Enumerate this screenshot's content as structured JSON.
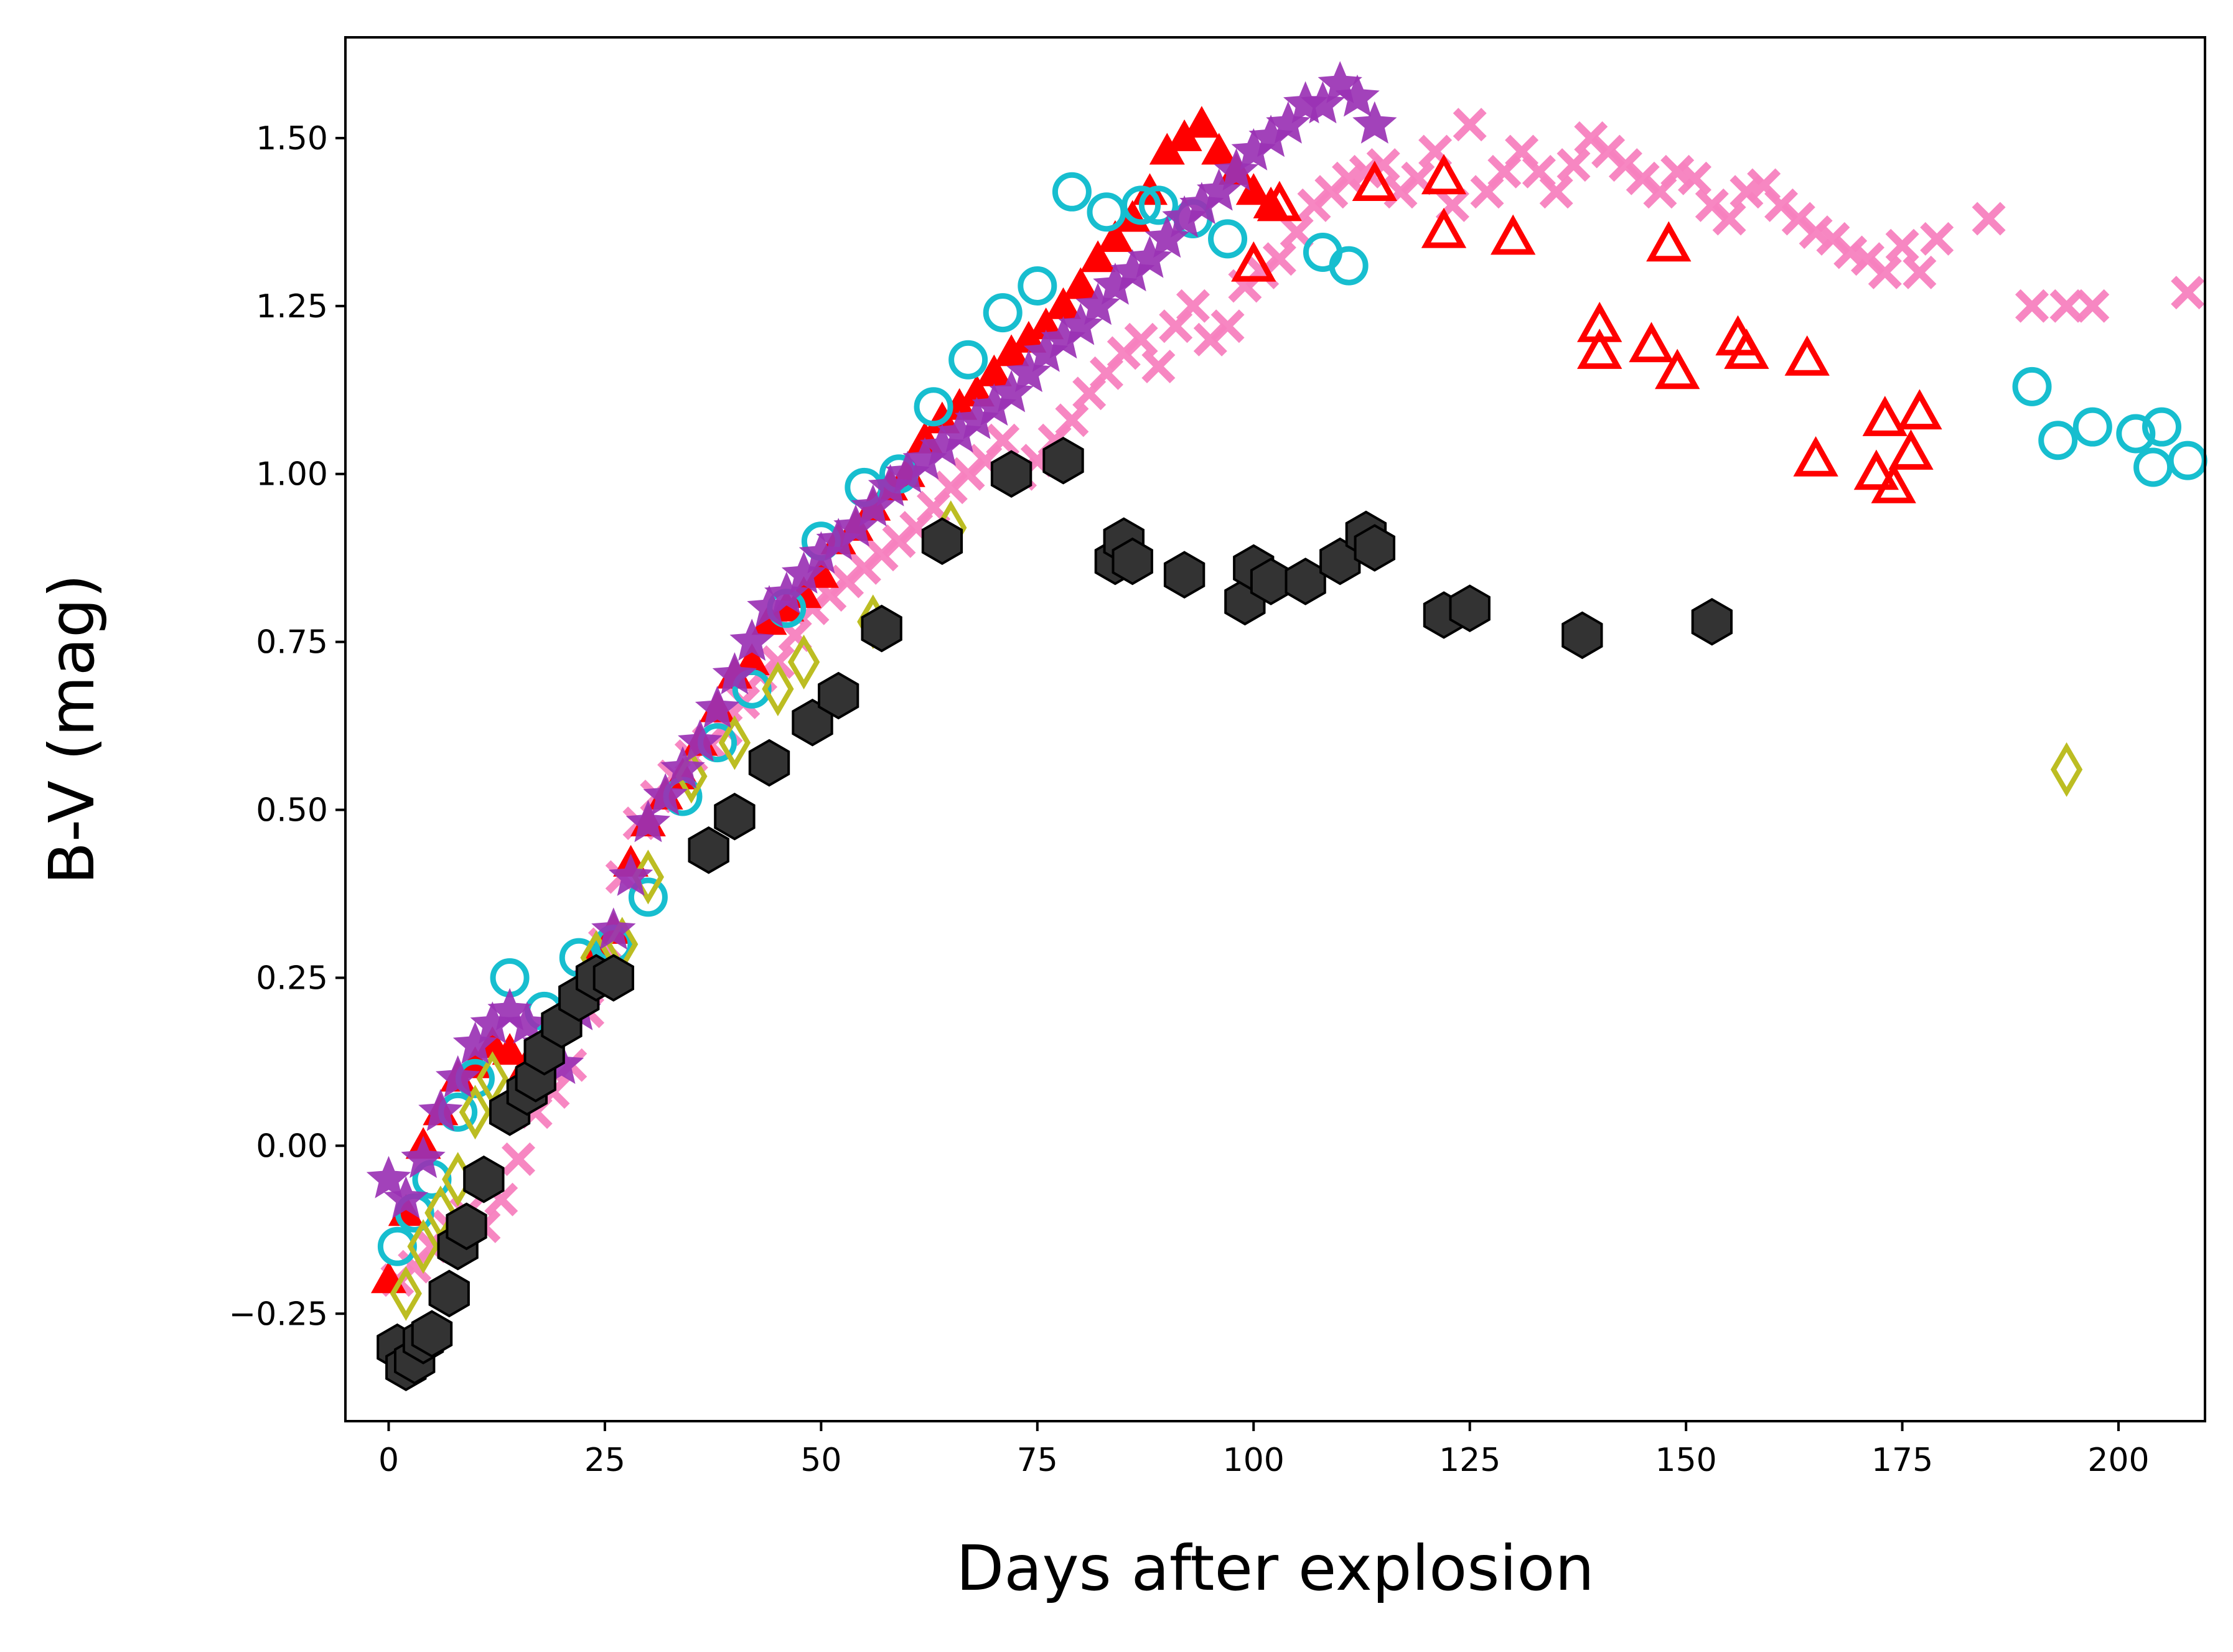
{
  "chart_data": {
    "type": "scatter",
    "title": "",
    "xlabel": "Days after explosion",
    "ylabel": "B-V (mag)",
    "xlim": [
      -5,
      210
    ],
    "ylim": [
      -0.41,
      1.65
    ],
    "xticks": [
      0,
      25,
      50,
      75,
      100,
      125,
      150,
      175,
      200
    ],
    "yticks": [
      -0.25,
      0.0,
      0.25,
      0.5,
      0.75,
      1.0,
      1.25,
      1.5
    ],
    "xtick_labels": [
      "0",
      "25",
      "50",
      "75",
      "100",
      "125",
      "150",
      "175",
      "200"
    ],
    "ytick_labels": [
      "−0.25",
      "0.00",
      "0.25",
      "0.50",
      "0.75",
      "1.00",
      "1.25",
      "1.50"
    ],
    "grid": false,
    "legend": "none",
    "series": [
      {
        "marker": "cross",
        "color": "#f781bf",
        "x": [
          1,
          3,
          5,
          7,
          9,
          11,
          13,
          15,
          17,
          19,
          21,
          23,
          25,
          27,
          29,
          31,
          33,
          35,
          37,
          39,
          41,
          43,
          45,
          47,
          49,
          51,
          53,
          55,
          57,
          59,
          61,
          63,
          65,
          67,
          69,
          71,
          73,
          75,
          77,
          79,
          81,
          83,
          85,
          87,
          89,
          91,
          93,
          95,
          97,
          99,
          101,
          103,
          105,
          107,
          109,
          111,
          113,
          115,
          117,
          119,
          121,
          123,
          125,
          127,
          129,
          131,
          133,
          135,
          137,
          139,
          141,
          143,
          145,
          147,
          149,
          151,
          153,
          155,
          157,
          159,
          161,
          163,
          165,
          167,
          169,
          171,
          173,
          175,
          177,
          179,
          185,
          190,
          194,
          197,
          208
        ],
        "y": [
          -0.2,
          -0.18,
          -0.15,
          -0.12,
          -0.1,
          -0.12,
          -0.08,
          -0.02,
          0.05,
          0.08,
          0.12,
          0.2,
          0.3,
          0.4,
          0.48,
          0.52,
          0.55,
          0.58,
          0.6,
          0.62,
          0.66,
          0.7,
          0.72,
          0.76,
          0.8,
          0.82,
          0.84,
          0.86,
          0.88,
          0.9,
          0.92,
          0.95,
          0.98,
          1.0,
          1.02,
          1.05,
          1.0,
          1.02,
          1.05,
          1.08,
          1.12,
          1.15,
          1.18,
          1.2,
          1.16,
          1.22,
          1.25,
          1.2,
          1.22,
          1.28,
          1.3,
          1.32,
          1.36,
          1.4,
          1.42,
          1.44,
          1.45,
          1.46,
          1.42,
          1.44,
          1.48,
          1.4,
          1.52,
          1.42,
          1.45,
          1.48,
          1.45,
          1.42,
          1.46,
          1.5,
          1.48,
          1.46,
          1.44,
          1.42,
          1.45,
          1.44,
          1.4,
          1.38,
          1.42,
          1.43,
          1.4,
          1.38,
          1.36,
          1.35,
          1.33,
          1.32,
          1.3,
          1.34,
          1.3,
          1.35,
          1.38,
          1.25,
          1.25,
          1.25,
          1.27
        ]
      },
      {
        "marker": "triangle-filled",
        "color": "#ff0000",
        "x": [
          0,
          2,
          4,
          6,
          8,
          10,
          12,
          14,
          16,
          18,
          20,
          22,
          24,
          26,
          28,
          30,
          32,
          34,
          36,
          38,
          40,
          42,
          44,
          46,
          48,
          50,
          52,
          54,
          56,
          58,
          60,
          62,
          64,
          66,
          68,
          70,
          72,
          74,
          76,
          78,
          80,
          82,
          84,
          86,
          88,
          90,
          92,
          94,
          96,
          98,
          100,
          102
        ],
        "y": [
          -0.2,
          -0.1,
          0.0,
          0.05,
          0.1,
          0.12,
          0.15,
          0.14,
          0.12,
          0.15,
          0.18,
          0.22,
          0.28,
          0.32,
          0.42,
          0.48,
          0.52,
          0.55,
          0.6,
          0.65,
          0.7,
          0.72,
          0.78,
          0.8,
          0.82,
          0.85,
          0.9,
          0.92,
          0.95,
          0.98,
          1.0,
          1.05,
          1.08,
          1.1,
          1.12,
          1.15,
          1.18,
          1.2,
          1.22,
          1.25,
          1.28,
          1.32,
          1.35,
          1.38,
          1.42,
          1.48,
          1.5,
          1.52,
          1.48,
          1.45,
          1.42,
          1.4
        ]
      },
      {
        "marker": "triangle-open",
        "color": "#ff0000",
        "x": [
          100,
          103,
          114,
          122,
          122,
          130,
          148,
          140,
          140,
          146,
          149,
          156,
          157,
          164,
          165,
          172,
          173,
          174,
          176,
          177
        ],
        "y": [
          1.31,
          1.4,
          1.43,
          1.44,
          1.36,
          1.35,
          1.34,
          1.22,
          1.18,
          1.19,
          1.15,
          1.2,
          1.18,
          1.17,
          1.02,
          1.0,
          1.08,
          0.98,
          1.03,
          1.09
        ]
      },
      {
        "marker": "circle-open",
        "color": "#17becf",
        "x": [
          1,
          3,
          5,
          8,
          10,
          14,
          18,
          22,
          26,
          30,
          34,
          38,
          42,
          46,
          50,
          55,
          59,
          63,
          67,
          71,
          75,
          79,
          83,
          87,
          89,
          93,
          97,
          108,
          111,
          190,
          193,
          197,
          202,
          204,
          205,
          208
        ],
        "y": [
          -0.15,
          -0.1,
          -0.05,
          0.05,
          0.1,
          0.25,
          0.2,
          0.28,
          0.3,
          0.37,
          0.52,
          0.6,
          0.68,
          0.8,
          0.9,
          0.98,
          1.0,
          1.1,
          1.17,
          1.24,
          1.28,
          1.42,
          1.39,
          1.4,
          1.4,
          1.38,
          1.35,
          1.33,
          1.31,
          1.13,
          1.05,
          1.07,
          1.06,
          1.01,
          1.07,
          1.02
        ]
      },
      {
        "marker": "diamond-open",
        "color": "#bcbd22",
        "x": [
          2,
          4,
          6,
          8,
          10,
          12,
          24,
          27,
          30,
          35,
          40,
          45,
          48,
          56,
          65,
          194
        ],
        "y": [
          -0.22,
          -0.15,
          -0.1,
          -0.05,
          0.05,
          0.1,
          0.28,
          0.3,
          0.4,
          0.55,
          0.6,
          0.68,
          0.72,
          0.78,
          0.92,
          0.56
        ]
      },
      {
        "marker": "star",
        "color": "#9a32b4",
        "x": [
          0,
          2,
          4,
          6,
          8,
          10,
          12,
          14,
          16,
          18,
          20,
          22,
          24,
          26,
          28,
          30,
          32,
          34,
          36,
          38,
          40,
          42,
          44,
          46,
          48,
          50,
          52,
          54,
          56,
          58,
          60,
          62,
          64,
          66,
          68,
          70,
          72,
          74,
          76,
          78,
          80,
          82,
          84,
          86,
          88,
          90,
          92,
          94,
          96,
          98,
          100,
          102,
          104,
          106,
          108,
          110,
          112,
          114
        ],
        "y": [
          -0.05,
          -0.08,
          -0.02,
          0.05,
          0.1,
          0.15,
          0.18,
          0.2,
          0.18,
          0.15,
          0.12,
          0.2,
          0.25,
          0.32,
          0.4,
          0.48,
          0.52,
          0.56,
          0.6,
          0.65,
          0.7,
          0.75,
          0.8,
          0.82,
          0.85,
          0.88,
          0.9,
          0.92,
          0.95,
          0.98,
          1.0,
          1.02,
          1.04,
          1.06,
          1.08,
          1.1,
          1.12,
          1.15,
          1.18,
          1.2,
          1.22,
          1.25,
          1.28,
          1.3,
          1.32,
          1.35,
          1.38,
          1.4,
          1.42,
          1.45,
          1.48,
          1.5,
          1.52,
          1.55,
          1.55,
          1.58,
          1.56,
          1.52
        ]
      },
      {
        "marker": "hexagon",
        "color": "#333333",
        "x": [
          1,
          2,
          3,
          4,
          5,
          7,
          8,
          9,
          11,
          14,
          16,
          17,
          18,
          20,
          22,
          24,
          26,
          37,
          40,
          44,
          49,
          52,
          57,
          64,
          72,
          78,
          84,
          85,
          86,
          92,
          99,
          100,
          102,
          106,
          110,
          113,
          114,
          122,
          125,
          138,
          153
        ],
        "y": [
          -0.3,
          -0.33,
          -0.32,
          -0.29,
          -0.28,
          -0.22,
          -0.15,
          -0.12,
          -0.05,
          0.05,
          0.08,
          0.1,
          0.14,
          0.18,
          0.22,
          0.25,
          0.25,
          0.44,
          0.49,
          0.57,
          0.63,
          0.67,
          0.77,
          0.9,
          1.0,
          1.02,
          0.87,
          0.9,
          0.87,
          0.85,
          0.81,
          0.86,
          0.84,
          0.84,
          0.87,
          0.91,
          0.89,
          0.79,
          0.8,
          0.76,
          0.78
        ]
      }
    ]
  }
}
